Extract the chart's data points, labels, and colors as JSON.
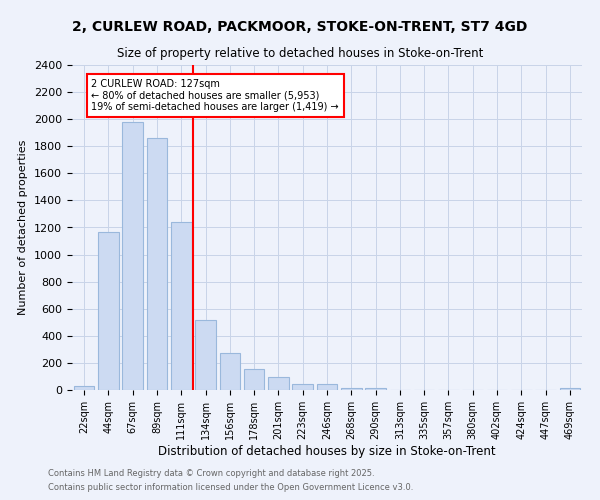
{
  "title1": "2, CURLEW ROAD, PACKMOOR, STOKE-ON-TRENT, ST7 4GD",
  "title2": "Size of property relative to detached houses in Stoke-on-Trent",
  "xlabel": "Distribution of detached houses by size in Stoke-on-Trent",
  "ylabel": "Number of detached properties",
  "bar_labels": [
    "22sqm",
    "44sqm",
    "67sqm",
    "89sqm",
    "111sqm",
    "134sqm",
    "156sqm",
    "178sqm",
    "201sqm",
    "223sqm",
    "246sqm",
    "268sqm",
    "290sqm",
    "313sqm",
    "335sqm",
    "357sqm",
    "380sqm",
    "402sqm",
    "424sqm",
    "447sqm",
    "469sqm"
  ],
  "bar_values": [
    28,
    1170,
    1980,
    1860,
    1240,
    520,
    275,
    155,
    95,
    45,
    45,
    18,
    14,
    0,
    0,
    0,
    0,
    0,
    0,
    0,
    18
  ],
  "bar_color": "#ccdaf2",
  "bar_edge_color": "#9ab8dc",
  "vline_color": "red",
  "annotation_text": "2 CURLEW ROAD: 127sqm\n← 80% of detached houses are smaller (5,953)\n19% of semi-detached houses are larger (1,419) →",
  "annotation_box_color": "white",
  "annotation_box_edge": "red",
  "ylim": [
    0,
    2400
  ],
  "yticks": [
    0,
    200,
    400,
    600,
    800,
    1000,
    1200,
    1400,
    1600,
    1800,
    2000,
    2200,
    2400
  ],
  "footnote1": "Contains HM Land Registry data © Crown copyright and database right 2025.",
  "footnote2": "Contains public sector information licensed under the Open Government Licence v3.0.",
  "bg_color": "#eef2fb",
  "grid_color": "#c8d4e8"
}
